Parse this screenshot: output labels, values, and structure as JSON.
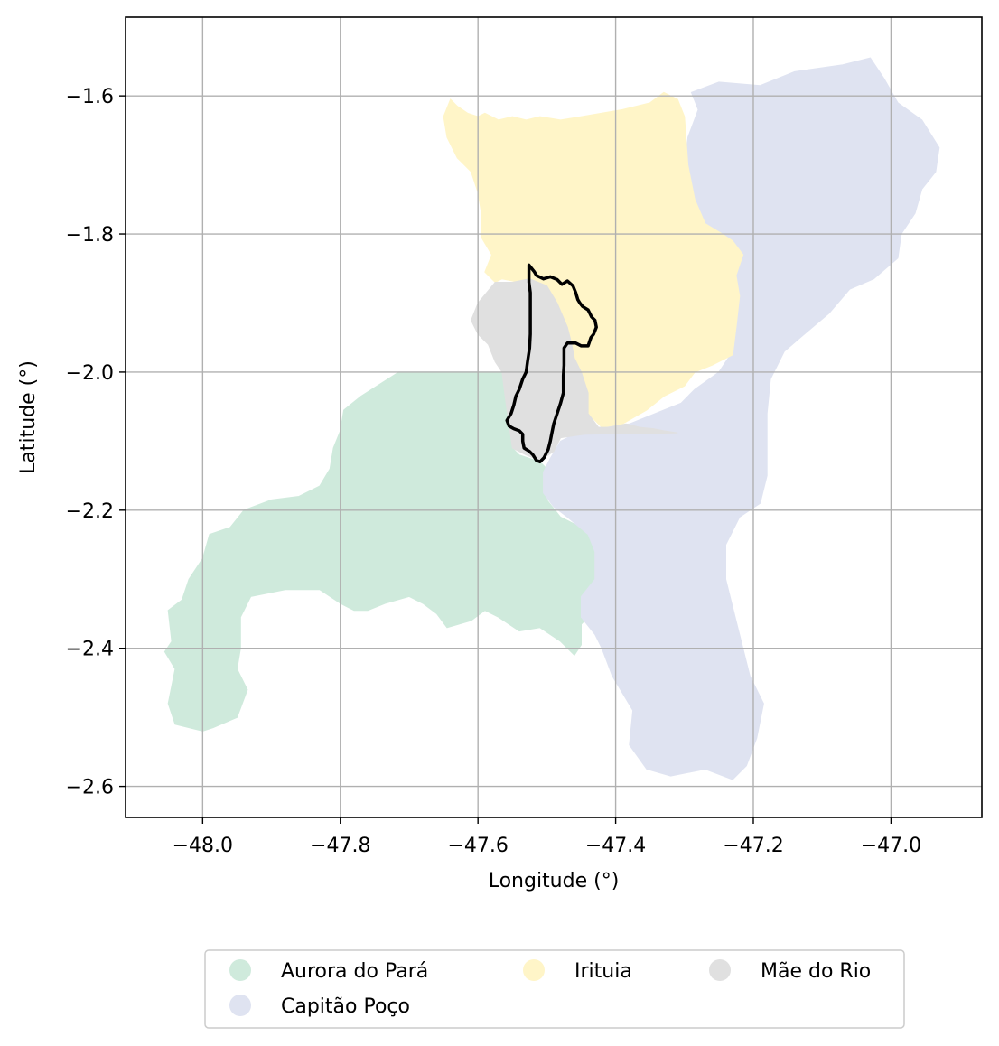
{
  "chart_data": {
    "type": "map",
    "xlabel": "Longitude (°)",
    "ylabel": "Latitude (°)",
    "xlim": [
      -48.112,
      -46.868
    ],
    "ylim": [
      -2.645,
      -1.486
    ],
    "grid": true,
    "xticks": [
      -48.0,
      -47.8,
      -47.6,
      -47.4,
      -47.2,
      -47.0
    ],
    "yticks": [
      -1.6,
      -1.8,
      -2.0,
      -2.2,
      -2.4,
      -2.6
    ],
    "xtick_labels": [
      "−48.0",
      "−47.8",
      "−47.6",
      "−47.4",
      "−47.2",
      "−47.0"
    ],
    "ytick_labels": [
      "−1.6",
      "−1.8",
      "−2.0",
      "−2.2",
      "−2.4",
      "−2.6"
    ],
    "legend_placement": "bottom-center",
    "regions": [
      {
        "name": "Aurora do Pará",
        "color": "#cfeadc",
        "polygon": [
          [
            -47.715,
            -2.0
          ],
          [
            -47.56,
            -2.0
          ],
          [
            -47.55,
            -2.055
          ],
          [
            -47.55,
            -2.11
          ],
          [
            -47.54,
            -2.12
          ],
          [
            -47.51,
            -2.13
          ],
          [
            -47.49,
            -2.15
          ],
          [
            -47.5,
            -2.185
          ],
          [
            -47.48,
            -2.21
          ],
          [
            -47.44,
            -2.23
          ],
          [
            -47.415,
            -2.25
          ],
          [
            -47.415,
            -2.3
          ],
          [
            -47.42,
            -2.33
          ],
          [
            -47.43,
            -2.345
          ],
          [
            -47.45,
            -2.365
          ],
          [
            -47.45,
            -2.395
          ],
          [
            -47.46,
            -2.41
          ],
          [
            -47.48,
            -2.39
          ],
          [
            -47.51,
            -2.37
          ],
          [
            -47.54,
            -2.375
          ],
          [
            -47.57,
            -2.355
          ],
          [
            -47.59,
            -2.345
          ],
          [
            -47.61,
            -2.36
          ],
          [
            -47.645,
            -2.37
          ],
          [
            -47.66,
            -2.35
          ],
          [
            -47.68,
            -2.335
          ],
          [
            -47.7,
            -2.325
          ],
          [
            -47.735,
            -2.335
          ],
          [
            -47.76,
            -2.345
          ],
          [
            -47.78,
            -2.345
          ],
          [
            -47.8,
            -2.335
          ],
          [
            -47.83,
            -2.315
          ],
          [
            -47.88,
            -2.315
          ],
          [
            -47.93,
            -2.325
          ],
          [
            -47.945,
            -2.355
          ],
          [
            -47.945,
            -2.4
          ],
          [
            -47.95,
            -2.43
          ],
          [
            -47.935,
            -2.46
          ],
          [
            -47.95,
            -2.5
          ],
          [
            -47.985,
            -2.515
          ],
          [
            -48.0,
            -2.52
          ],
          [
            -48.04,
            -2.51
          ],
          [
            -48.05,
            -2.48
          ],
          [
            -48.04,
            -2.43
          ],
          [
            -48.055,
            -2.405
          ],
          [
            -48.045,
            -2.39
          ],
          [
            -48.05,
            -2.345
          ],
          [
            -48.03,
            -2.33
          ],
          [
            -48.02,
            -2.3
          ],
          [
            -48.0,
            -2.27
          ],
          [
            -47.99,
            -2.235
          ],
          [
            -47.96,
            -2.225
          ],
          [
            -47.94,
            -2.2
          ],
          [
            -47.9,
            -2.185
          ],
          [
            -47.86,
            -2.18
          ],
          [
            -47.83,
            -2.165
          ],
          [
            -47.815,
            -2.14
          ],
          [
            -47.81,
            -2.11
          ],
          [
            -47.8,
            -2.085
          ],
          [
            -47.795,
            -2.055
          ],
          [
            -47.77,
            -2.035
          ]
        ]
      },
      {
        "name": "Capitão Poço",
        "color": "#dfe3f1",
        "polygon": [
          [
            -47.29,
            -1.595
          ],
          [
            -47.25,
            -1.58
          ],
          [
            -47.19,
            -1.585
          ],
          [
            -47.14,
            -1.565
          ],
          [
            -47.07,
            -1.555
          ],
          [
            -47.03,
            -1.545
          ],
          [
            -47.01,
            -1.575
          ],
          [
            -46.99,
            -1.61
          ],
          [
            -46.955,
            -1.635
          ],
          [
            -46.93,
            -1.675
          ],
          [
            -46.935,
            -1.71
          ],
          [
            -46.955,
            -1.735
          ],
          [
            -46.965,
            -1.77
          ],
          [
            -46.985,
            -1.8
          ],
          [
            -46.99,
            -1.835
          ],
          [
            -47.025,
            -1.865
          ],
          [
            -47.06,
            -1.88
          ],
          [
            -47.09,
            -1.915
          ],
          [
            -47.12,
            -1.94
          ],
          [
            -47.155,
            -1.97
          ],
          [
            -47.175,
            -2.01
          ],
          [
            -47.18,
            -2.06
          ],
          [
            -47.18,
            -2.1
          ],
          [
            -47.18,
            -2.15
          ],
          [
            -47.19,
            -2.19
          ],
          [
            -47.22,
            -2.21
          ],
          [
            -47.24,
            -2.25
          ],
          [
            -47.24,
            -2.3
          ],
          [
            -47.225,
            -2.36
          ],
          [
            -47.215,
            -2.4
          ],
          [
            -47.205,
            -2.44
          ],
          [
            -47.185,
            -2.48
          ],
          [
            -47.195,
            -2.53
          ],
          [
            -47.21,
            -2.57
          ],
          [
            -47.23,
            -2.59
          ],
          [
            -47.27,
            -2.575
          ],
          [
            -47.32,
            -2.585
          ],
          [
            -47.355,
            -2.575
          ],
          [
            -47.38,
            -2.54
          ],
          [
            -47.375,
            -2.49
          ],
          [
            -47.39,
            -2.465
          ],
          [
            -47.405,
            -2.44
          ],
          [
            -47.42,
            -2.4
          ],
          [
            -47.43,
            -2.38
          ],
          [
            -47.45,
            -2.355
          ],
          [
            -47.45,
            -2.325
          ],
          [
            -47.43,
            -2.3
          ],
          [
            -47.43,
            -2.26
          ],
          [
            -47.44,
            -2.235
          ],
          [
            -47.47,
            -2.21
          ],
          [
            -47.49,
            -2.195
          ],
          [
            -47.505,
            -2.175
          ],
          [
            -47.505,
            -2.145
          ],
          [
            -47.495,
            -2.125
          ],
          [
            -47.48,
            -2.1
          ],
          [
            -47.45,
            -2.085
          ],
          [
            -47.41,
            -2.078
          ],
          [
            -47.38,
            -2.075
          ],
          [
            -47.33,
            -2.055
          ],
          [
            -47.305,
            -2.045
          ],
          [
            -47.285,
            -2.025
          ],
          [
            -47.25,
            -2.0
          ],
          [
            -47.23,
            -1.97
          ],
          [
            -47.23,
            -1.93
          ],
          [
            -47.225,
            -1.88
          ],
          [
            -47.235,
            -1.85
          ],
          [
            -47.225,
            -1.82
          ],
          [
            -47.245,
            -1.8
          ],
          [
            -47.27,
            -1.785
          ],
          [
            -47.29,
            -1.755
          ],
          [
            -47.3,
            -1.71
          ],
          [
            -47.295,
            -1.66
          ],
          [
            -47.28,
            -1.62
          ]
        ]
      },
      {
        "name": "Irituia",
        "color": "#fff5c8",
        "polygon": [
          [
            -47.64,
            -1.605
          ],
          [
            -47.63,
            -1.615
          ],
          [
            -47.615,
            -1.625
          ],
          [
            -47.6,
            -1.63
          ],
          [
            -47.59,
            -1.625
          ],
          [
            -47.57,
            -1.635
          ],
          [
            -47.55,
            -1.63
          ],
          [
            -47.53,
            -1.635
          ],
          [
            -47.51,
            -1.63
          ],
          [
            -47.48,
            -1.635
          ],
          [
            -47.45,
            -1.63
          ],
          [
            -47.42,
            -1.625
          ],
          [
            -47.39,
            -1.62
          ],
          [
            -47.37,
            -1.615
          ],
          [
            -47.35,
            -1.61
          ],
          [
            -47.33,
            -1.595
          ],
          [
            -47.31,
            -1.605
          ],
          [
            -47.3,
            -1.63
          ],
          [
            -47.295,
            -1.7
          ],
          [
            -47.285,
            -1.75
          ],
          [
            -47.27,
            -1.785
          ],
          [
            -47.245,
            -1.8
          ],
          [
            -47.23,
            -1.81
          ],
          [
            -47.215,
            -1.83
          ],
          [
            -47.225,
            -1.86
          ],
          [
            -47.22,
            -1.89
          ],
          [
            -47.225,
            -1.935
          ],
          [
            -47.23,
            -1.975
          ],
          [
            -47.26,
            -1.99
          ],
          [
            -47.285,
            -2.0
          ],
          [
            -47.3,
            -2.02
          ],
          [
            -47.33,
            -2.035
          ],
          [
            -47.355,
            -2.055
          ],
          [
            -47.39,
            -2.075
          ],
          [
            -47.42,
            -2.08
          ],
          [
            -47.44,
            -2.06
          ],
          [
            -47.44,
            -2.03
          ],
          [
            -47.45,
            -2.0
          ],
          [
            -47.46,
            -1.985
          ],
          [
            -47.47,
            -1.96
          ],
          [
            -47.48,
            -1.94
          ],
          [
            -47.49,
            -1.91
          ],
          [
            -47.505,
            -1.895
          ],
          [
            -47.52,
            -1.88
          ],
          [
            -47.54,
            -1.87
          ],
          [
            -47.565,
            -1.865
          ],
          [
            -47.575,
            -1.87
          ],
          [
            -47.59,
            -1.855
          ],
          [
            -47.58,
            -1.83
          ],
          [
            -47.595,
            -1.805
          ],
          [
            -47.595,
            -1.77
          ],
          [
            -47.6,
            -1.74
          ],
          [
            -47.61,
            -1.71
          ],
          [
            -47.63,
            -1.69
          ],
          [
            -47.645,
            -1.66
          ],
          [
            -47.65,
            -1.63
          ]
        ]
      },
      {
        "name": "Mãe do Rio",
        "color": "#e0e0e0",
        "polygon": [
          [
            -47.575,
            -1.87
          ],
          [
            -47.55,
            -1.87
          ],
          [
            -47.525,
            -1.865
          ],
          [
            -47.5,
            -1.875
          ],
          [
            -47.485,
            -1.9
          ],
          [
            -47.47,
            -1.935
          ],
          [
            -47.465,
            -1.955
          ],
          [
            -47.46,
            -1.98
          ],
          [
            -47.45,
            -2.0
          ],
          [
            -47.44,
            -2.03
          ],
          [
            -47.44,
            -2.06
          ],
          [
            -47.425,
            -2.08
          ],
          [
            -47.41,
            -2.08
          ],
          [
            -47.385,
            -2.075
          ],
          [
            -47.365,
            -2.08
          ],
          [
            -47.345,
            -2.082
          ],
          [
            -47.33,
            -2.085
          ],
          [
            -47.31,
            -2.088
          ],
          [
            -47.445,
            -2.09
          ],
          [
            -47.48,
            -2.095
          ],
          [
            -47.49,
            -2.115
          ],
          [
            -47.51,
            -2.128
          ],
          [
            -47.53,
            -2.12
          ],
          [
            -47.55,
            -2.11
          ],
          [
            -47.555,
            -2.075
          ],
          [
            -47.56,
            -2.04
          ],
          [
            -47.565,
            -2.0
          ],
          [
            -47.575,
            -1.985
          ],
          [
            -47.585,
            -1.96
          ],
          [
            -47.6,
            -1.945
          ],
          [
            -47.61,
            -1.925
          ],
          [
            -47.6,
            -1.9
          ]
        ]
      }
    ],
    "outline": {
      "color": "#000000",
      "polygon": [
        [
          -47.526,
          -1.845
        ],
        [
          -47.518,
          -1.855
        ],
        [
          -47.515,
          -1.86
        ],
        [
          -47.505,
          -1.865
        ],
        [
          -47.495,
          -1.862
        ],
        [
          -47.485,
          -1.866
        ],
        [
          -47.478,
          -1.873
        ],
        [
          -47.47,
          -1.868
        ],
        [
          -47.462,
          -1.875
        ],
        [
          -47.458,
          -1.885
        ],
        [
          -47.455,
          -1.895
        ],
        [
          -47.452,
          -1.9
        ],
        [
          -47.448,
          -1.905
        ],
        [
          -47.44,
          -1.91
        ],
        [
          -47.435,
          -1.92
        ],
        [
          -47.43,
          -1.925
        ],
        [
          -47.428,
          -1.935
        ],
        [
          -47.432,
          -1.945
        ],
        [
          -47.436,
          -1.95
        ],
        [
          -47.44,
          -1.962
        ],
        [
          -47.45,
          -1.962
        ],
        [
          -47.458,
          -1.958
        ],
        [
          -47.47,
          -1.958
        ],
        [
          -47.475,
          -1.965
        ],
        [
          -47.475,
          -1.99
        ],
        [
          -47.476,
          -2.005
        ],
        [
          -47.476,
          -2.03
        ],
        [
          -47.48,
          -2.045
        ],
        [
          -47.485,
          -2.06
        ],
        [
          -47.49,
          -2.075
        ],
        [
          -47.493,
          -2.09
        ],
        [
          -47.495,
          -2.1
        ],
        [
          -47.498,
          -2.112
        ],
        [
          -47.504,
          -2.124
        ],
        [
          -47.51,
          -2.13
        ],
        [
          -47.515,
          -2.128
        ],
        [
          -47.52,
          -2.12
        ],
        [
          -47.525,
          -2.115
        ],
        [
          -47.533,
          -2.11
        ],
        [
          -47.535,
          -2.1
        ],
        [
          -47.535,
          -2.09
        ],
        [
          -47.54,
          -2.085
        ],
        [
          -47.548,
          -2.082
        ],
        [
          -47.555,
          -2.078
        ],
        [
          -47.558,
          -2.07
        ],
        [
          -47.552,
          -2.06
        ],
        [
          -47.548,
          -2.048
        ],
        [
          -47.545,
          -2.035
        ],
        [
          -47.54,
          -2.025
        ],
        [
          -47.535,
          -2.01
        ],
        [
          -47.53,
          -2.0
        ],
        [
          -47.528,
          -1.985
        ],
        [
          -47.525,
          -1.965
        ],
        [
          -47.524,
          -1.945
        ],
        [
          -47.524,
          -1.925
        ],
        [
          -47.524,
          -1.905
        ],
        [
          -47.524,
          -1.885
        ],
        [
          -47.526,
          -1.87
        ]
      ]
    }
  },
  "axes": {
    "xlabel": "Longitude (°)",
    "ylabel": "Latitude (°)"
  },
  "legend": {
    "items": [
      {
        "label": "Aurora do Pará",
        "color": "#cfeadc"
      },
      {
        "label": "Irituia",
        "color": "#fff5c8"
      },
      {
        "label": "Mãe do Rio",
        "color": "#e0e0e0"
      },
      {
        "label": "Capitão Poço",
        "color": "#dfe3f1"
      }
    ]
  }
}
